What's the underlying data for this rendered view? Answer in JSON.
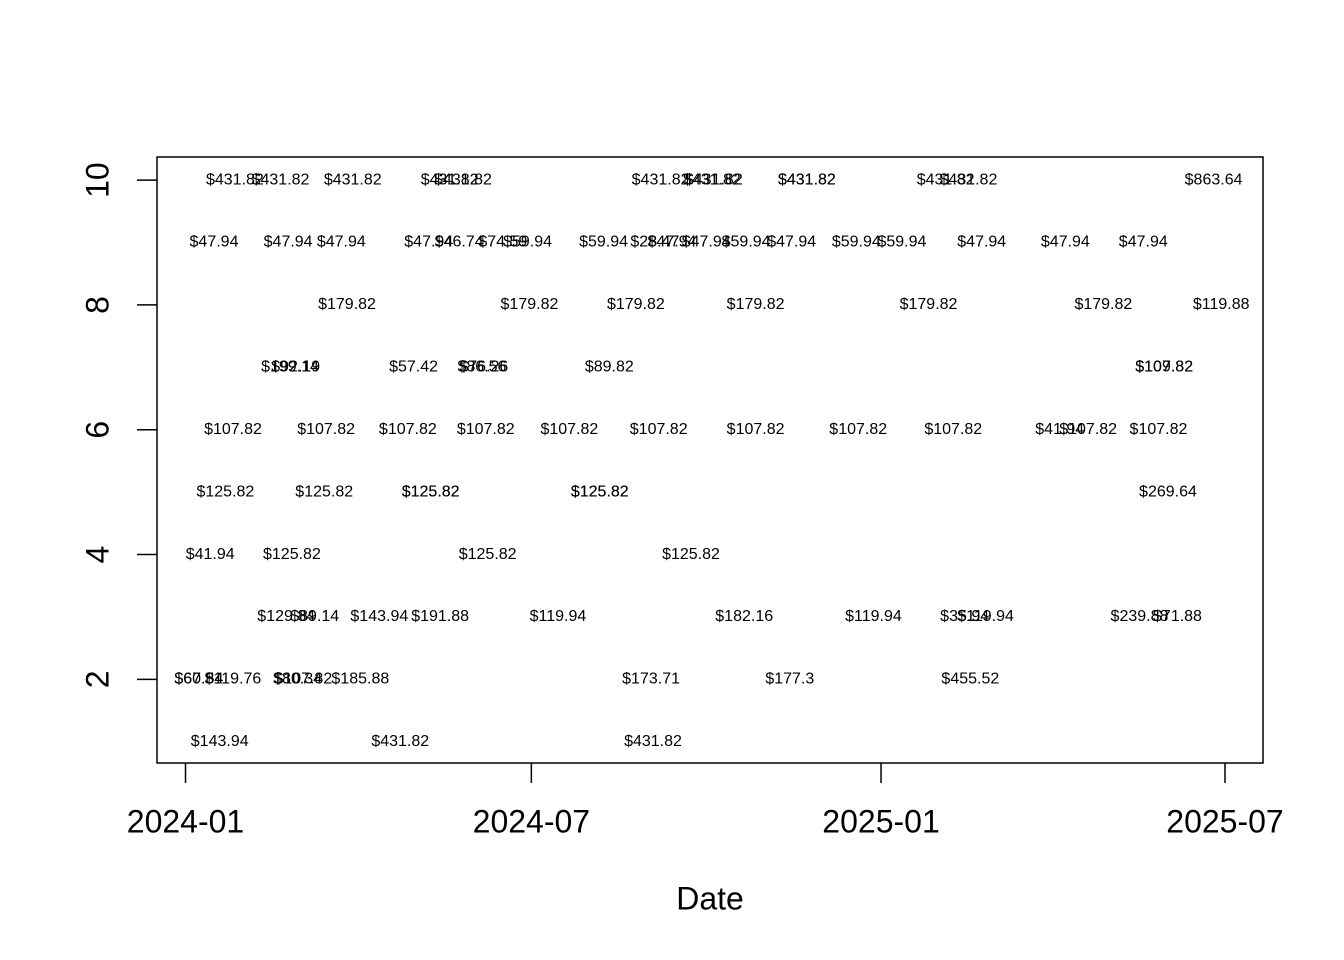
{
  "chart_data": {
    "type": "scatter",
    "xlabel": "Date",
    "color": "#000000",
    "xlim": [
      19708,
      20290
    ],
    "ylim": [
      0.66,
      10.37
    ],
    "xticks": [
      {
        "value": 19723,
        "label": "2024-01"
      },
      {
        "value": 19905,
        "label": "2024-07"
      },
      {
        "value": 20089,
        "label": "2025-01"
      },
      {
        "value": 20270,
        "label": "2025-07"
      }
    ],
    "yticks": [
      2,
      4,
      6,
      8,
      10
    ],
    "x": [
      19749,
      19773,
      19811,
      19862,
      19869,
      19973,
      20000,
      20001,
      20050,
      20050,
      20123,
      20135,
      20264,
      19738,
      19777,
      19805,
      19851,
      19867,
      19890,
      19903,
      19943,
      19970,
      19979,
      19997,
      20018,
      20042,
      20076,
      20100,
      20142,
      20186,
      20227,
      19808,
      19904,
      19960,
      20023,
      20114,
      20206,
      20268,
      19778,
      19781,
      19843,
      19879,
      19880,
      19946,
      20238,
      20238,
      19748,
      19797,
      19840,
      19881,
      19925,
      19972,
      20023,
      20077,
      20127,
      20183,
      20198,
      20235,
      19744,
      19796,
      19852,
      19852,
      19941,
      19941,
      20240,
      19736,
      19779,
      19882,
      19989,
      19776,
      19791,
      19825,
      19857,
      19919,
      20017,
      20085,
      20133,
      20144,
      20225,
      20245,
      19730,
      19730,
      19748,
      19782,
      19785,
      19815,
      19968,
      20041,
      20136,
      19741,
      19836,
      19969
    ],
    "values": [
      10,
      10,
      10,
      10,
      10,
      10,
      10,
      10,
      10,
      10,
      10,
      10,
      10,
      9,
      9,
      9,
      9,
      9,
      9,
      9,
      9,
      9,
      9,
      9,
      9,
      9,
      9,
      9,
      9,
      9,
      9,
      8,
      8,
      8,
      8,
      8,
      8,
      8,
      7,
      7,
      7,
      7,
      7,
      7,
      7,
      7,
      6,
      6,
      6,
      6,
      6,
      6,
      6,
      6,
      6,
      6,
      6,
      6,
      5,
      5,
      5,
      5,
      5,
      5,
      5,
      4,
      4,
      4,
      4,
      3,
      3,
      3,
      3,
      3,
      3,
      3,
      3,
      3,
      3,
      3,
      2,
      2,
      2,
      2,
      2,
      2,
      2,
      2,
      2,
      1,
      1,
      1
    ],
    "labels": [
      "$431.82",
      "$431.82",
      "$431.82",
      "$431.82",
      "$431.82",
      "$431.82",
      "$431.82",
      "$431.82",
      "$431.82",
      "$431.82",
      "$431.82",
      "$431.82",
      "$863.64",
      "$47.94",
      "$47.94",
      "$47.94",
      "$47.94",
      "$46.74",
      "$74.59",
      "$59.94",
      "$59.94",
      "$28.47",
      "$47.94",
      "$47.94",
      "$59.94",
      "$47.94",
      "$59.94",
      "$59.94",
      "$47.94",
      "$47.94",
      "$47.94",
      "$179.82",
      "$179.82",
      "$179.82",
      "$179.82",
      "$179.82",
      "$179.82",
      "$119.88",
      "$199.14",
      "$92.19",
      "$57.42",
      "$86.56",
      "$76.26",
      "$89.82",
      "$107.82",
      "$109.82",
      "$107.82",
      "$107.82",
      "$107.82",
      "$107.82",
      "$107.82",
      "$107.82",
      "$107.82",
      "$107.82",
      "$107.82",
      "$41.94",
      "$107.82",
      "$107.82",
      "$125.82",
      "$125.82",
      "$125.82",
      "$125.82",
      "$125.82",
      "$125.82",
      "$269.64",
      "$41.94",
      "$125.82",
      "$125.82",
      "$125.82",
      "$129.84",
      "$89.14",
      "$143.94",
      "$191.88",
      "$119.94",
      "$182.16",
      "$119.94",
      "$35.94",
      "$119.94",
      "$239.88",
      "$71.88",
      "$67.84",
      "$60.54",
      "$119.76",
      "$80.34",
      "$107.82",
      "$185.88",
      "$173.71",
      "$177.3",
      "$455.52",
      "$143.94",
      "$431.82",
      "$431.82"
    ]
  }
}
